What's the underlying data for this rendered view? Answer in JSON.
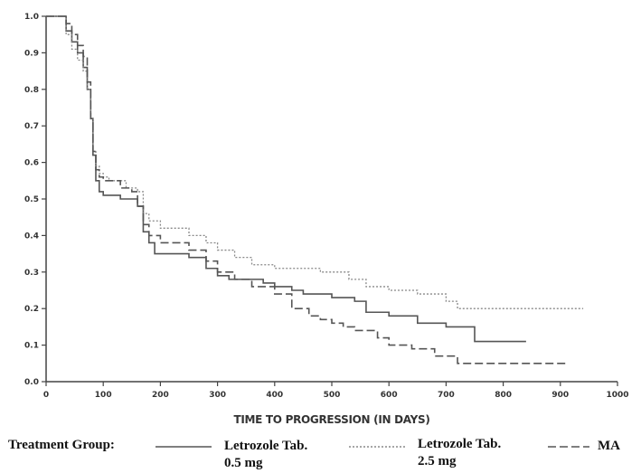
{
  "chart_data": {
    "type": "line",
    "xlabel": "TIME TO PROGRESSION (IN DAYS)",
    "ylabel": "",
    "xlim": [
      0,
      1000
    ],
    "ylim": [
      0.0,
      1.0
    ],
    "x_ticks": [
      0,
      100,
      200,
      300,
      400,
      500,
      600,
      700,
      800,
      900,
      1000
    ],
    "y_ticks": [
      "0.0",
      "0.1",
      "0.2",
      "0.3",
      "0.4",
      "0.5",
      "0.6",
      "0.7",
      "0.8",
      "0.9",
      "1.0"
    ],
    "grid": false,
    "legend_title": "Treatment Group:",
    "series": [
      {
        "name": "Letrozole Tab. 0.5 mg",
        "name_lines": [
          "Letrozole Tab.",
          "0.5 mg"
        ],
        "style": "solid",
        "color": "#555555",
        "x": [
          0,
          25,
          35,
          45,
          55,
          65,
          72,
          78,
          82,
          87,
          93,
          100,
          110,
          130,
          150,
          160,
          170,
          180,
          190,
          200,
          250,
          280,
          300,
          320,
          350,
          380,
          400,
          430,
          450,
          480,
          500,
          540,
          560,
          600,
          650,
          700,
          750,
          840
        ],
        "y": [
          1.0,
          1.0,
          0.96,
          0.93,
          0.9,
          0.86,
          0.8,
          0.72,
          0.62,
          0.55,
          0.52,
          0.51,
          0.51,
          0.5,
          0.5,
          0.48,
          0.41,
          0.38,
          0.35,
          0.35,
          0.34,
          0.31,
          0.29,
          0.28,
          0.28,
          0.27,
          0.26,
          0.25,
          0.24,
          0.24,
          0.23,
          0.22,
          0.19,
          0.18,
          0.16,
          0.15,
          0.11,
          0.11
        ]
      },
      {
        "name": "Letrozole Tab. 2.5 mg",
        "name_lines": [
          "Letrozole Tab.",
          "2.5 mg"
        ],
        "style": "dotted",
        "color": "#888888",
        "x": [
          0,
          25,
          35,
          45,
          55,
          65,
          72,
          78,
          82,
          87,
          93,
          100,
          110,
          140,
          160,
          170,
          180,
          200,
          250,
          280,
          300,
          330,
          360,
          400,
          430,
          480,
          530,
          560,
          600,
          650,
          700,
          720,
          800,
          900,
          940
        ],
        "y": [
          1.0,
          1.0,
          0.95,
          0.91,
          0.88,
          0.85,
          0.8,
          0.72,
          0.63,
          0.59,
          0.57,
          0.56,
          0.55,
          0.53,
          0.52,
          0.46,
          0.44,
          0.42,
          0.4,
          0.38,
          0.36,
          0.34,
          0.32,
          0.31,
          0.31,
          0.3,
          0.28,
          0.26,
          0.25,
          0.24,
          0.22,
          0.2,
          0.2,
          0.2,
          0.2
        ]
      },
      {
        "name": "MA",
        "name_lines": [
          "MA"
        ],
        "style": "dashed",
        "color": "#555555",
        "x": [
          0,
          25,
          35,
          45,
          55,
          65,
          72,
          78,
          82,
          87,
          93,
          100,
          130,
          150,
          160,
          170,
          180,
          200,
          250,
          280,
          300,
          330,
          360,
          400,
          430,
          460,
          480,
          500,
          520,
          540,
          580,
          600,
          640,
          680,
          700,
          720,
          800,
          900,
          910
        ],
        "y": [
          1.0,
          1.0,
          0.98,
          0.95,
          0.92,
          0.89,
          0.82,
          0.72,
          0.63,
          0.58,
          0.56,
          0.55,
          0.53,
          0.52,
          0.48,
          0.43,
          0.4,
          0.38,
          0.36,
          0.33,
          0.3,
          0.28,
          0.26,
          0.24,
          0.2,
          0.18,
          0.17,
          0.16,
          0.15,
          0.14,
          0.12,
          0.1,
          0.09,
          0.07,
          0.07,
          0.05,
          0.05,
          0.05,
          0.05
        ]
      }
    ]
  }
}
